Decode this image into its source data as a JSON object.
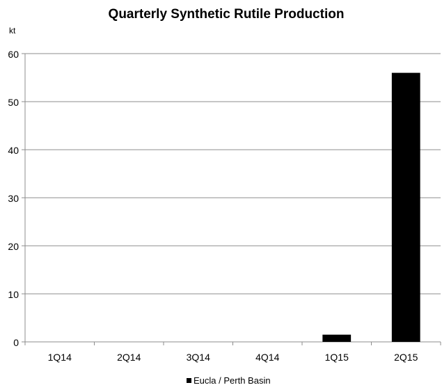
{
  "chart_data": {
    "type": "bar",
    "title": "Quarterly Synthetic Rutile Production",
    "ylabel": "kt",
    "xlabel": "",
    "categories": [
      "1Q14",
      "2Q14",
      "3Q14",
      "4Q14",
      "1Q15",
      "2Q15"
    ],
    "series": [
      {
        "name": "Eucla / Perth Basin",
        "values": [
          0,
          0,
          0,
          0,
          1.5,
          56
        ],
        "color": "#000000"
      }
    ],
    "ylim": [
      0,
      60
    ],
    "yticks": [
      0,
      10,
      20,
      30,
      40,
      50,
      60
    ],
    "grid": true,
    "legend": "bottom"
  }
}
